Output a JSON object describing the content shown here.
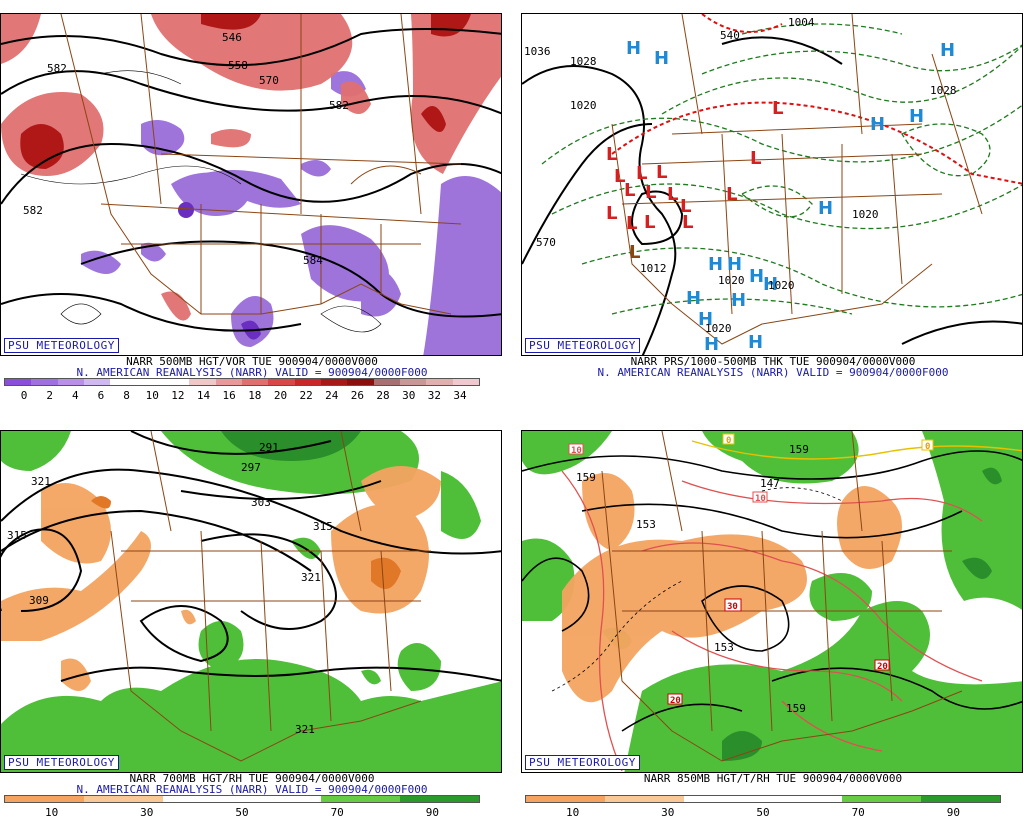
{
  "panels": {
    "p1": {
      "logo": "PSU METEOROLOGY",
      "line1": "NARR 500MB HGT/VOR TUE 900904/0000V000",
      "line2": "N. AMERICAN REANALYSIS (NARR) VALID = 900904/0000F000",
      "ticks": [
        "0",
        "2",
        "4",
        "6",
        "8",
        "10",
        "12",
        "14",
        "16",
        "18",
        "20",
        "22",
        "24",
        "26",
        "28",
        "30",
        "32",
        "34"
      ],
      "contour_labels": [
        "546",
        "558",
        "570",
        "582",
        "582",
        "582",
        "584"
      ],
      "colors": [
        "#8a4fd8",
        "#a070e0",
        "#b890e8",
        "#d0b8f0",
        "#ffffff",
        "#ffffff",
        "#ffffff",
        "#f0c8c8",
        "#e89a9a",
        "#e07070",
        "#d84848",
        "#c82828",
        "#a81818",
        "#8a1010",
        "#a87070",
        "#c89898",
        "#e0b0b0",
        "#f0c8d0"
      ]
    },
    "p2": {
      "logo": "PSU METEOROLOGY",
      "line1": "NARR PRS/1000-500MB THK TUE 900904/0000V000",
      "line2": "N. AMERICAN REANALYSIS (NARR) VALID = 900904/0000F000",
      "contour_labels": [
        "1036",
        "1028",
        "1020",
        "1012",
        "1020",
        "1020",
        "1028",
        "1020",
        "1020",
        "1004",
        "570",
        "540"
      ],
      "H_letter": "H",
      "L_letter": "L"
    },
    "p3": {
      "logo": "PSU METEOROLOGY",
      "line1": "NARR 700MB HGT/RH TUE 900904/0000V000",
      "line2": "N. AMERICAN REANALYSIS (NARR) VALID = 900904/0000F000",
      "ticks": [
        "10",
        "30",
        "50",
        "70",
        "90"
      ],
      "contour_labels": [
        "291",
        "297",
        "303",
        "309",
        "315",
        "315",
        "321",
        "321",
        "321"
      ],
      "colors": [
        "#f4a460",
        "#f8c896",
        "#ffffff",
        "#ffffff",
        "#66cc44",
        "#2a9a2a"
      ]
    },
    "p4": {
      "logo": "PSU METEOROLOGY",
      "line1": "NARR 850MB HGT/T/RH TUE 900904/0000V000",
      "ticks": [
        "10",
        "30",
        "50",
        "70",
        "90"
      ],
      "contour_labels": [
        "147",
        "153",
        "153",
        "159",
        "159",
        "159"
      ],
      "temp_labels": [
        "10",
        "10",
        "30",
        "20",
        "20",
        "0",
        "0"
      ],
      "colors": [
        "#f4a460",
        "#f8c896",
        "#ffffff",
        "#ffffff",
        "#66cc44",
        "#2a9a2a"
      ]
    }
  }
}
